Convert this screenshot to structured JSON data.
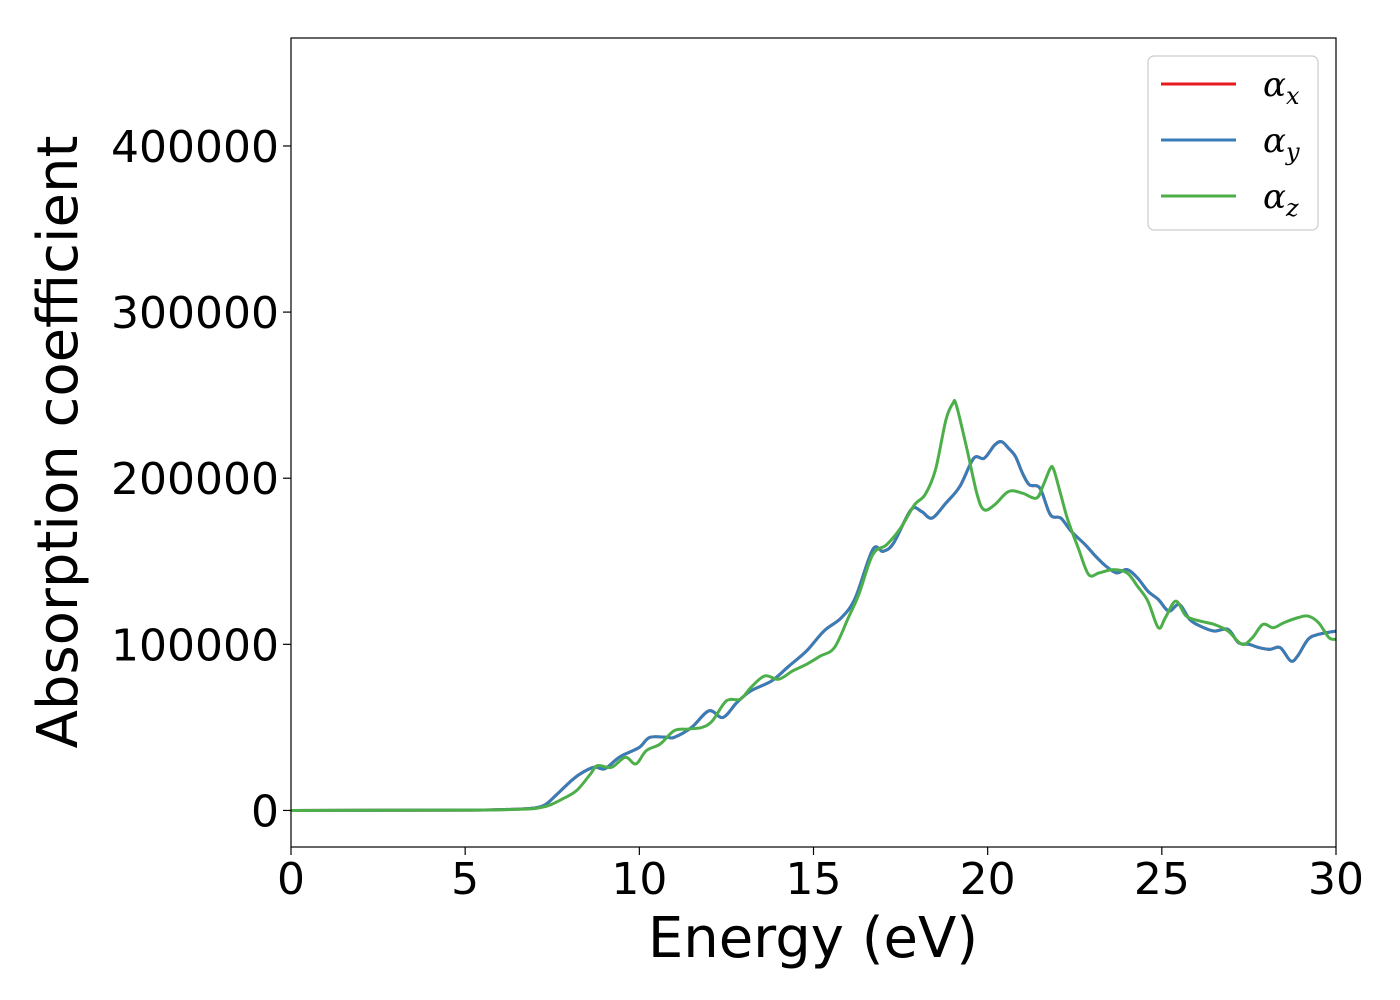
{
  "chart_data": {
    "type": "line",
    "title": "",
    "xlabel": "Energy (eV)",
    "ylabel": "Absorption coefficient",
    "xlim": [
      0,
      30
    ],
    "ylim": [
      -22000,
      465000
    ],
    "xticks": [
      0,
      5,
      10,
      15,
      20,
      25,
      30
    ],
    "xtick_labels": [
      "0",
      "5",
      "10",
      "15",
      "20",
      "25",
      "30"
    ],
    "yticks": [
      0,
      100000,
      200000,
      300000,
      400000
    ],
    "ytick_labels": [
      "0",
      "100000",
      "200000",
      "300000",
      "400000"
    ],
    "grid": false,
    "legend_position": "top-right",
    "series": [
      {
        "name": "αx",
        "legend_symbol": "α",
        "legend_subscript": "x",
        "color": "#e41a1c",
        "x": [
          0,
          5,
          6,
          6.5,
          7,
          7.3,
          7.6,
          8,
          8.3,
          8.7,
          9,
          9.3,
          9.5,
          10,
          10.3,
          10.8,
          11,
          11.5,
          12,
          12.4,
          12.8,
          13.2,
          13.8,
          14.3,
          14.8,
          15.3,
          15.8,
          16.2,
          16.7,
          17,
          17.3,
          17.8,
          18.1,
          18.4,
          18.8,
          19.2,
          19.6,
          19.9,
          20.2,
          20.4,
          20.6,
          20.8,
          21,
          21.2,
          21.5,
          21.8,
          22.1,
          22.4,
          22.8,
          23.1,
          23.4,
          23.7,
          24,
          24.3,
          24.6,
          24.9,
          25.2,
          25.5,
          25.8,
          26.1,
          26.5,
          26.9,
          27.2,
          27.5,
          27.8,
          28.1,
          28.4,
          28.7,
          28.9,
          29.2,
          29.5,
          30
        ],
        "values": [
          0,
          200,
          500,
          800,
          1500,
          3500,
          9000,
          17000,
          22000,
          26000,
          25000,
          30000,
          33000,
          38000,
          44000,
          44000,
          44000,
          50000,
          60000,
          56000,
          65000,
          72000,
          78000,
          87000,
          96000,
          108000,
          116000,
          128000,
          157000,
          156000,
          161000,
          181000,
          180000,
          176000,
          185000,
          195000,
          212000,
          212000,
          220000,
          222000,
          218000,
          213000,
          203000,
          196000,
          194000,
          178000,
          176000,
          168000,
          160000,
          153000,
          147000,
          143000,
          145000,
          140000,
          132000,
          127000,
          120000,
          124000,
          115000,
          111000,
          108000,
          109000,
          101000,
          100000,
          98000,
          97000,
          98000,
          90000,
          93000,
          103000,
          106000,
          108000
        ]
      },
      {
        "name": "αy",
        "legend_symbol": "α",
        "legend_subscript": "y",
        "color": "#377eb8",
        "x": [
          0,
          5,
          6,
          6.5,
          7,
          7.3,
          7.6,
          8,
          8.3,
          8.7,
          9,
          9.3,
          9.5,
          10,
          10.3,
          10.8,
          11,
          11.5,
          12,
          12.4,
          12.8,
          13.2,
          13.8,
          14.3,
          14.8,
          15.3,
          15.8,
          16.2,
          16.7,
          17,
          17.3,
          17.8,
          18.1,
          18.4,
          18.8,
          19.2,
          19.6,
          19.9,
          20.2,
          20.4,
          20.6,
          20.8,
          21,
          21.2,
          21.5,
          21.8,
          22.1,
          22.4,
          22.8,
          23.1,
          23.4,
          23.7,
          24,
          24.3,
          24.6,
          24.9,
          25.2,
          25.5,
          25.8,
          26.1,
          26.5,
          26.9,
          27.2,
          27.5,
          27.8,
          28.1,
          28.4,
          28.7,
          28.9,
          29.2,
          29.5,
          30
        ],
        "values": [
          0,
          200,
          500,
          800,
          1500,
          3500,
          9000,
          17000,
          22000,
          26000,
          25000,
          30000,
          33000,
          38000,
          44000,
          44000,
          44000,
          50000,
          60000,
          56000,
          65000,
          72000,
          78000,
          87000,
          96000,
          108000,
          116000,
          128000,
          157000,
          156000,
          161000,
          181000,
          180000,
          176000,
          185000,
          195000,
          212000,
          212000,
          220000,
          222000,
          218000,
          213000,
          203000,
          196000,
          194000,
          178000,
          176000,
          168000,
          160000,
          153000,
          147000,
          143000,
          145000,
          140000,
          132000,
          127000,
          120000,
          124000,
          115000,
          111000,
          108000,
          109000,
          101000,
          100000,
          98000,
          97000,
          98000,
          90000,
          93000,
          103000,
          106000,
          108000
        ]
      },
      {
        "name": "αz",
        "legend_symbol": "α",
        "legend_subscript": "z",
        "color": "#4daf4a",
        "x": [
          0,
          5,
          6,
          6.5,
          7,
          7.4,
          7.8,
          8.2,
          8.6,
          8.8,
          9.2,
          9.6,
          9.9,
          10.2,
          10.6,
          11,
          11.4,
          11.8,
          12.1,
          12.5,
          12.9,
          13.2,
          13.6,
          14,
          14.4,
          14.8,
          15.2,
          15.6,
          16,
          16.3,
          16.7,
          17.1,
          17.5,
          17.9,
          18.2,
          18.5,
          18.8,
          19,
          19.1,
          19.4,
          19.7,
          19.9,
          20.2,
          20.6,
          21,
          21.4,
          21.6,
          21.8,
          21.9,
          22.1,
          22.3,
          22.6,
          22.9,
          23.2,
          23.6,
          24,
          24.3,
          24.6,
          24.9,
          25.1,
          25.4,
          25.7,
          26.1,
          26.5,
          26.9,
          27.3,
          27.6,
          27.9,
          28.2,
          28.5,
          28.9,
          29.2,
          29.5,
          29.8,
          30
        ],
        "values": [
          0,
          200,
          400,
          700,
          1200,
          3000,
          7000,
          12000,
          22000,
          27000,
          26000,
          32000,
          28000,
          36000,
          40000,
          48000,
          49000,
          50000,
          54000,
          66000,
          67000,
          74000,
          81000,
          79000,
          84000,
          88000,
          93000,
          98000,
          116000,
          130000,
          154000,
          160000,
          170000,
          184000,
          190000,
          205000,
          235000,
          245000,
          244000,
          218000,
          190000,
          181000,
          184000,
          192000,
          191000,
          188000,
          196000,
          206000,
          205000,
          190000,
          175000,
          158000,
          142000,
          143000,
          145000,
          143000,
          135000,
          126000,
          110000,
          116000,
          126000,
          117000,
          114000,
          112000,
          108000,
          100000,
          104000,
          112000,
          110000,
          113000,
          116000,
          117000,
          113000,
          104000,
          103000
        ]
      }
    ]
  }
}
